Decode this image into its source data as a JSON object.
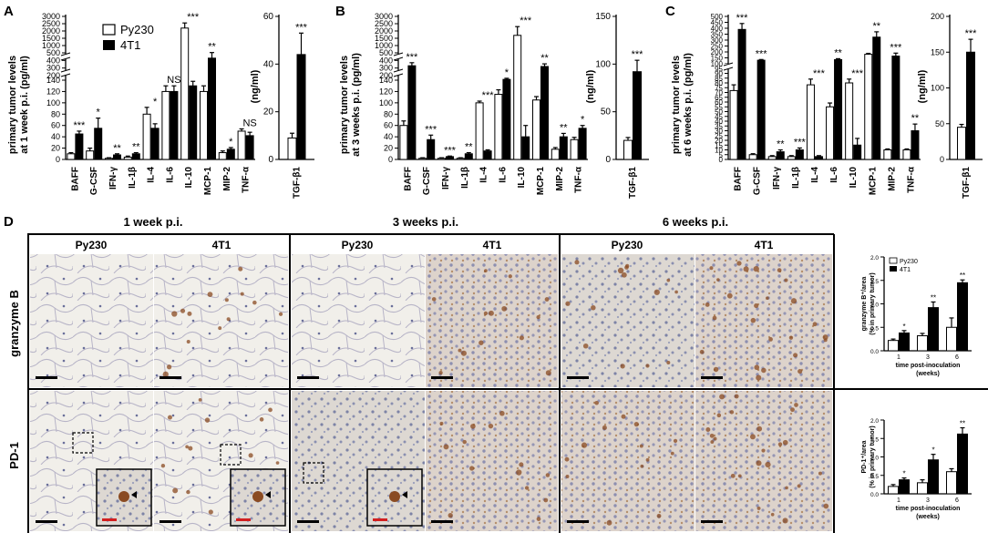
{
  "panels": {
    "A": {
      "letter": "A",
      "ylabel_1": "primary tumor levels",
      "ylabel_2": "at 1 week p.i. (pg/ml)",
      "side_ylabel": "(ng/ml)"
    },
    "B": {
      "letter": "B",
      "ylabel_1": "primary tumor levels",
      "ylabel_2": "at 3 weeks p.i. (pg/ml)",
      "side_ylabel": "(ng/ml)"
    },
    "C": {
      "letter": "C",
      "ylabel_1": "primary tumor levels",
      "ylabel_2": "at 6 weeks p.i. (pg/ml)",
      "side_ylabel": "(ng/ml)"
    },
    "D": {
      "letter": "D"
    }
  },
  "legend": {
    "py230": "Py230",
    "t4t1": "4T1"
  },
  "colors": {
    "py230_fill": "#ffffff",
    "t4t1_fill": "#000000",
    "tissue_bg": "#e6e2da"
  },
  "chart_data": [
    {
      "id": "A-cytokines",
      "type": "bar",
      "categories": [
        "BAFF",
        "G-CSF",
        "IFN-γ",
        "IL-1β",
        "IL-4",
        "IL-6",
        "IL-10",
        "MCP-1",
        "MIP-2",
        "TNF-α"
      ],
      "series": [
        {
          "name": "Py230",
          "values": [
            10,
            15,
            2,
            4,
            80,
            120,
            2200,
            120,
            12,
            50
          ],
          "errors": [
            2,
            5,
            1,
            2,
            12,
            10,
            350,
            10,
            3,
            4
          ]
        },
        {
          "name": "4T1",
          "values": [
            45,
            55,
            8,
            10,
            55,
            120,
            130,
            430,
            18,
            42
          ],
          "errors": [
            5,
            18,
            2,
            2,
            8,
            10,
            8,
            90,
            3,
            6
          ]
        }
      ],
      "significance": [
        "***",
        "*",
        "**",
        "**",
        "*",
        "NS",
        "***",
        "**",
        "*",
        "NS"
      ],
      "yticks": [
        "0",
        "20",
        "40",
        "60",
        "80",
        "100",
        "120",
        "140",
        "200",
        "300",
        "400",
        "500",
        "1000",
        "1500",
        "2000",
        "2500",
        "3000"
      ],
      "broken_axis": true
    },
    {
      "id": "A-tgf",
      "type": "bar",
      "categories": [
        "TGF-β1"
      ],
      "series": [
        {
          "name": "Py230",
          "values": [
            9
          ],
          "errors": [
            2
          ]
        },
        {
          "name": "4T1",
          "values": [
            44
          ],
          "errors": [
            9
          ]
        }
      ],
      "significance": [
        "***"
      ],
      "yticks": [
        "0",
        "20",
        "40",
        "60"
      ],
      "ylim": [
        0,
        60
      ],
      "ylabel": "(ng/ml)"
    },
    {
      "id": "B-cytokines",
      "type": "bar",
      "categories": [
        "BAFF",
        "G-CSF",
        "IFN-γ",
        "IL-1β",
        "IL-4",
        "IL-6",
        "IL-10",
        "MCP-1",
        "MIP-2",
        "TNF-α"
      ],
      "series": [
        {
          "name": "Py230",
          "values": [
            60,
            2,
            2,
            2,
            100,
            115,
            1700,
            105,
            18,
            35
          ],
          "errors": [
            8,
            1,
            1,
            1,
            3,
            8,
            600,
            6,
            3,
            4
          ]
        },
        {
          "name": "4T1",
          "values": [
            330,
            35,
            5,
            10,
            15,
            150,
            40,
            320,
            40,
            55
          ],
          "errors": [
            40,
            8,
            1,
            2,
            2,
            15,
            20,
            35,
            6,
            5
          ]
        }
      ],
      "significance": [
        "***",
        "***",
        "***",
        "**",
        "***",
        "*",
        "***",
        "**",
        "**",
        "*"
      ],
      "yticks": [
        "0",
        "20",
        "40",
        "60",
        "80",
        "100",
        "120",
        "140",
        "200",
        "300",
        "400",
        "500",
        "1000",
        "1500",
        "2000",
        "2500",
        "3000"
      ],
      "broken_axis": true
    },
    {
      "id": "B-tgf",
      "type": "bar",
      "categories": [
        "TGF-β1"
      ],
      "series": [
        {
          "name": "Py230",
          "values": [
            20
          ],
          "errors": [
            3
          ]
        },
        {
          "name": "4T1",
          "values": [
            92
          ],
          "errors": [
            12
          ]
        }
      ],
      "significance": [
        "***"
      ],
      "yticks": [
        "0",
        "50",
        "100",
        "150"
      ],
      "ylim": [
        0,
        150
      ],
      "ylabel": "(ng/ml)"
    },
    {
      "id": "C-cytokines",
      "type": "bar",
      "categories": [
        "BAFF",
        "G-CSF",
        "IFN-γ",
        "IL-1β",
        "IL-4",
        "IL-6",
        "IL-10",
        "MCP-1",
        "MIP-2",
        "TNF-α"
      ],
      "series": [
        {
          "name": "Py230",
          "values": [
            72,
            5,
            3,
            3,
            78,
            55,
            80,
            180,
            10,
            10
          ],
          "errors": [
            6,
            1,
            1,
            1,
            6,
            4,
            4,
            8,
            1,
            1
          ]
        },
        {
          "name": "4T1",
          "values": [
            390,
            130,
            8,
            10,
            3,
            135,
            15,
            325,
            165,
            30
          ],
          "errors": [
            50,
            6,
            2,
            2,
            1,
            8,
            7,
            45,
            25,
            7
          ]
        }
      ],
      "significance": [
        "***",
        "***",
        "**",
        "***",
        "***",
        "**",
        "***",
        "**",
        "***",
        "**"
      ],
      "yticks": [
        "0",
        "5",
        "10",
        "15",
        "20",
        "25",
        "30",
        "35",
        "40",
        "45",
        "50",
        "55",
        "60",
        "65",
        "70",
        "75",
        "80",
        "85",
        "90",
        "95",
        "100",
        "150",
        "200",
        "250",
        "300",
        "350",
        "400",
        "450",
        "500"
      ],
      "broken_axis": true
    },
    {
      "id": "C-tgf",
      "type": "bar",
      "categories": [
        "TGF-β1"
      ],
      "series": [
        {
          "name": "Py230",
          "values": [
            45
          ],
          "errors": [
            4
          ]
        },
        {
          "name": "4T1",
          "values": [
            150
          ],
          "errors": [
            18
          ]
        }
      ],
      "significance": [
        "***"
      ],
      "yticks": [
        "0",
        "50",
        "100",
        "150",
        "200"
      ],
      "ylim": [
        0,
        200
      ],
      "ylabel": "(ng/ml)"
    },
    {
      "id": "D-granzyme",
      "type": "bar",
      "categories": [
        "1",
        "3",
        "6"
      ],
      "series": [
        {
          "name": "Py230",
          "values": [
            0.22,
            0.32,
            0.5
          ],
          "errors": [
            0.03,
            0.05,
            0.2
          ]
        },
        {
          "name": "4T1",
          "values": [
            0.38,
            0.92,
            1.45
          ],
          "errors": [
            0.05,
            0.12,
            0.06
          ]
        }
      ],
      "significance": [
        "*",
        "**",
        "**"
      ],
      "yticks": [
        "0.0",
        "0.5",
        "1.0",
        "1.5",
        "2.0"
      ],
      "ylim": [
        0,
        2.0
      ],
      "ylabel": "granzyme B⁺/area (% in primary tumor)",
      "xlabel": "time post-inoculation (weeks)"
    },
    {
      "id": "D-pd1",
      "type": "bar",
      "categories": [
        "1",
        "3",
        "6"
      ],
      "series": [
        {
          "name": "Py230",
          "values": [
            0.2,
            0.3,
            0.6
          ],
          "errors": [
            0.05,
            0.08,
            0.08
          ]
        },
        {
          "name": "4T1",
          "values": [
            0.38,
            0.92,
            1.62
          ],
          "errors": [
            0.05,
            0.15,
            0.17
          ]
        }
      ],
      "significance": [
        "*",
        "*",
        "**"
      ],
      "yticks": [
        "0.0",
        "0.5",
        "1.0",
        "1.5",
        "2.0"
      ],
      "ylim": [
        0,
        2.0
      ],
      "ylabel": "PD-1⁺/area (% in primary tumor)",
      "xlabel": "time post-inoculation (weeks)"
    }
  ],
  "micrographs": {
    "timepoints": [
      "1 week p.i.",
      "3 weeks p.i.",
      "6 weeks p.i."
    ],
    "groups": [
      "Py230",
      "4T1"
    ],
    "rows": [
      "granzyme B",
      "PD-1"
    ]
  }
}
